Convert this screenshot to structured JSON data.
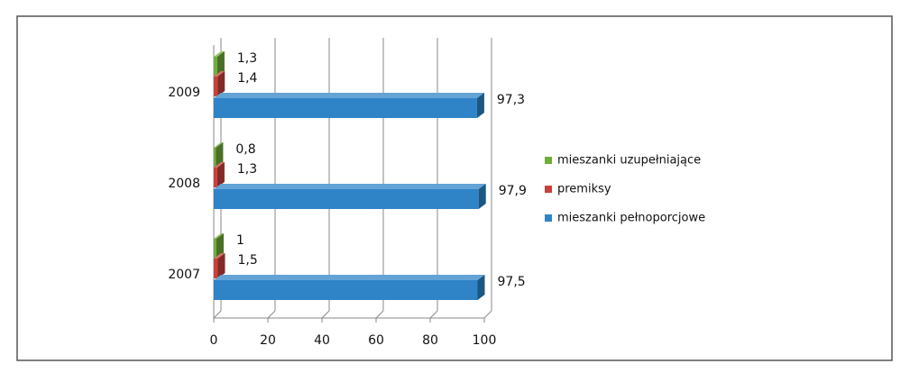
{
  "chart_data": {
    "type": "bar",
    "orientation": "horizontal",
    "categories": [
      "2007",
      "2008",
      "2009"
    ],
    "series": [
      {
        "name": "mieszanki uzupełniające",
        "color": "#70ad3a",
        "values": [
          1,
          0.8,
          1.3
        ],
        "value_labels": [
          "1",
          "0,8",
          "1,3"
        ]
      },
      {
        "name": "premiksy",
        "color": "#c9413b",
        "values": [
          1.5,
          1.3,
          1.4
        ],
        "value_labels": [
          "1,5",
          "1,3",
          "1,4"
        ]
      },
      {
        "name": "mieszanki pełnoporcjowe",
        "color": "#2f84c8",
        "values": [
          97.5,
          97.9,
          97.3
        ],
        "value_labels": [
          "97,5",
          "97,9",
          "97,3"
        ]
      }
    ],
    "xlim": [
      0,
      100
    ],
    "xticks": [
      0,
      20,
      40,
      60,
      80,
      100
    ],
    "grid": true,
    "legend": "right"
  }
}
